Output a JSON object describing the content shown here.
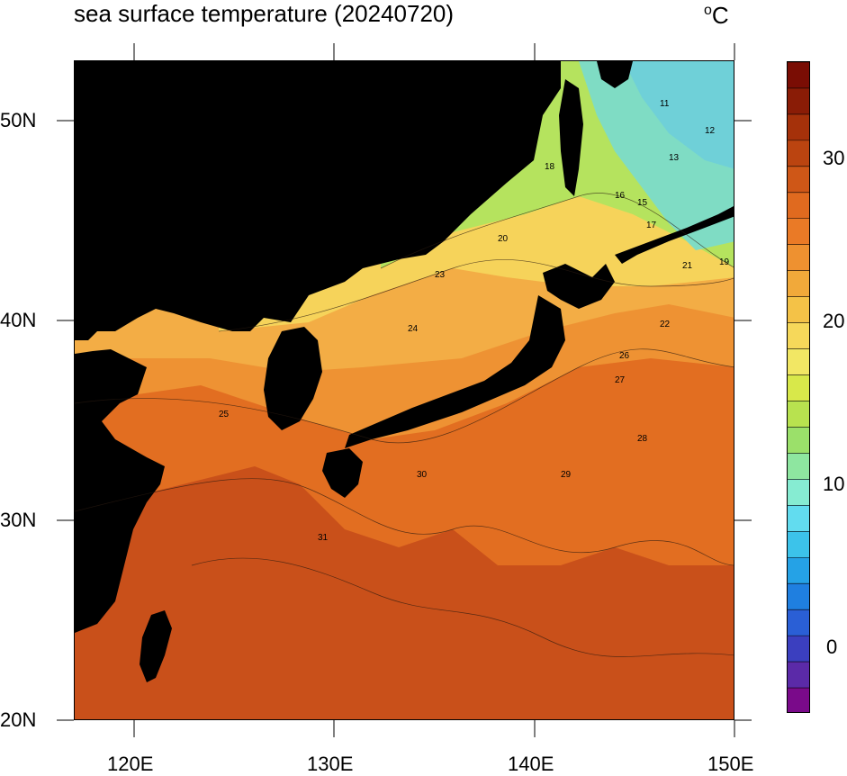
{
  "title": "sea surface temperature (20240720)",
  "unit": {
    "degree": "o",
    "symbol": "C"
  },
  "axes": {
    "lon_ticks": [
      "120E",
      "130E",
      "140E",
      "150E"
    ],
    "lat_ticks": [
      "50N",
      "40N",
      "30N",
      "20N"
    ],
    "lon_range": [
      117,
      150
    ],
    "lat_range": [
      20,
      53
    ]
  },
  "colorbar": {
    "tick_labels": [
      "30",
      "20",
      "10",
      "0"
    ],
    "range": [
      -4,
      36
    ],
    "palette": [
      "#7a0a8a",
      "#5b2aa8",
      "#3b3fbf",
      "#2a5fd6",
      "#1f7fe0",
      "#25a2e6",
      "#3cc3ea",
      "#62dcef",
      "#86ecd2",
      "#8ee6a0",
      "#9be06a",
      "#b8e24f",
      "#d8e84a",
      "#f2e764",
      "#f6d85a",
      "#f4c247",
      "#f1a93a",
      "#ee9130",
      "#ea7a26",
      "#e06a1f",
      "#cf5717",
      "#bb4410",
      "#a5310a",
      "#8a1c06",
      "#7a0d04"
    ]
  },
  "map": {
    "land_color": "#000000",
    "colors": {
      "cold_sea": "#7fe3d4",
      "cool_sea": "#a9e57a",
      "mild_sea": "#f3e070",
      "warm_sea": "#f1b24a",
      "hot_sea": "#e6772a",
      "hotter_sea": "#d65e1d",
      "hottest_sea": "#c24a12"
    }
  },
  "contour_labels": [
    "11",
    "12",
    "13",
    "15",
    "16",
    "17",
    "18",
    "19",
    "20",
    "21",
    "22",
    "23",
    "24",
    "25",
    "26",
    "27",
    "28",
    "29",
    "30",
    "31"
  ]
}
